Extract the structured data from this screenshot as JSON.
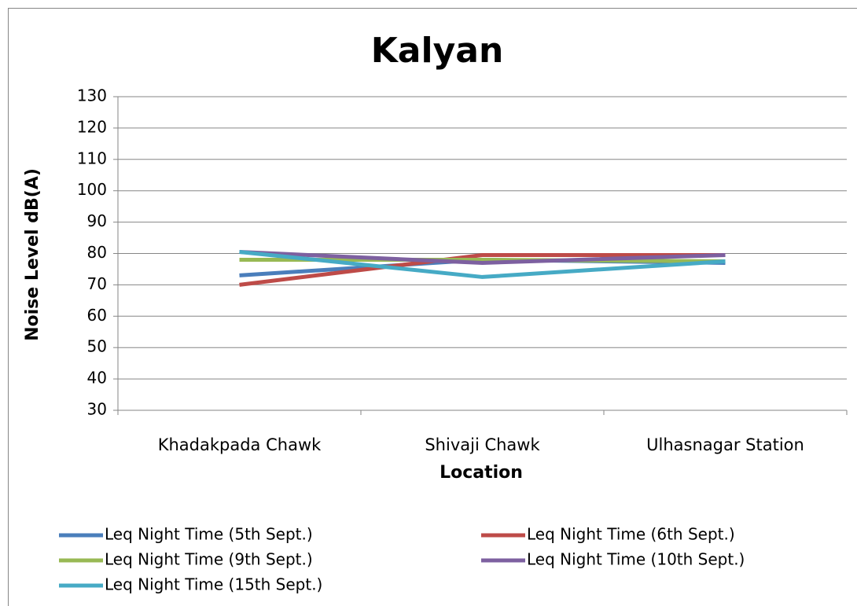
{
  "chart_data": {
    "type": "line",
    "title": "Kalyan",
    "x_label": "Location",
    "y_label": "Noise Level dB(A)",
    "categories": [
      "Khadakpada Chawk",
      "Shivaji Chawk",
      "Ulhasnagar Station"
    ],
    "series": [
      {
        "name": "Leq Night Time (5th Sept.)",
        "color": "#4a7ebb",
        "values": [
          73,
          78,
          77
        ]
      },
      {
        "name": "Leq Night Time (6th Sept.)",
        "color": "#be4b48",
        "values": [
          70,
          79.5,
          79.5
        ]
      },
      {
        "name": "Leq Night Time (9th Sept.)",
        "color": "#98b954",
        "values": [
          78,
          78,
          77.5
        ]
      },
      {
        "name": "Leq Night Time (10th Sept.)",
        "color": "#7d60a0",
        "values": [
          80.5,
          77,
          79.5
        ]
      },
      {
        "name": "Leq Night Time (15th Sept.)",
        "color": "#46aac5",
        "values": [
          80.5,
          72.5,
          77.5
        ]
      }
    ],
    "ylim": [
      30,
      130
    ],
    "yticks": [
      30,
      40,
      50,
      60,
      70,
      80,
      90,
      100,
      110,
      120,
      130
    ],
    "grid": true,
    "legend": "bottom"
  }
}
